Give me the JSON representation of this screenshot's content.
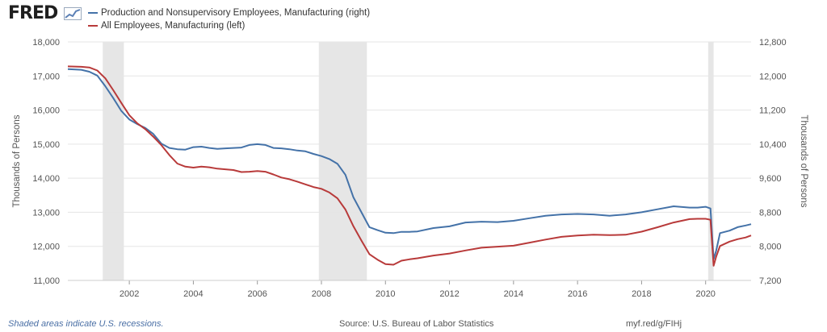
{
  "header": {
    "logo_text": "FRED"
  },
  "footer": {
    "recession_note": "Shaded areas indicate U.S. recessions.",
    "source": "Source: U.S. Bureau of Labor Statistics",
    "short_link": "myf.red/g/FIHj"
  },
  "colors": {
    "production_series": "#4472a8",
    "all_employees_series": "#b83a3a",
    "recession_shading": "#e6e6e6",
    "gridline": "#e5e5e5"
  },
  "chart_data": {
    "type": "line",
    "title": "",
    "xlabel": "",
    "ylabel_left": "Thousands of Persons",
    "ylabel_right": "Thousands of Persons",
    "xlim": [
      2000.08,
      2021.42
    ],
    "ylim_left": [
      11000,
      18000
    ],
    "ylim_right": [
      7200,
      12800
    ],
    "x_ticks": [
      2002,
      2004,
      2006,
      2008,
      2010,
      2012,
      2014,
      2016,
      2018,
      2020
    ],
    "y_ticks_left": [
      11000,
      12000,
      13000,
      14000,
      15000,
      16000,
      17000,
      18000
    ],
    "y_ticks_left_labels": [
      "11,000",
      "12,000",
      "13,000",
      "14,000",
      "15,000",
      "16,000",
      "17,000",
      "18,000"
    ],
    "y_ticks_right": [
      7200,
      8000,
      8800,
      9600,
      10400,
      11200,
      12000,
      12800
    ],
    "y_ticks_right_labels": [
      "7,200",
      "8,000",
      "8,800",
      "9,600",
      "10,400",
      "11,200",
      "12,000",
      "12,800"
    ],
    "grid": true,
    "legend_position": "top-left",
    "recessions": [
      [
        2001.17,
        2001.83
      ],
      [
        2007.92,
        2009.42
      ],
      [
        2020.08,
        2020.25
      ]
    ],
    "series": [
      {
        "name": "Production and Nonsupervisory Employees, Manufacturing (right)",
        "axis": "right",
        "color": "#4472a8",
        "x": [
          2000.08,
          2000.5,
          2000.75,
          2001.0,
          2001.25,
          2001.5,
          2001.75,
          2002.0,
          2002.25,
          2002.5,
          2002.75,
          2003.0,
          2003.25,
          2003.5,
          2003.75,
          2004.0,
          2004.25,
          2004.5,
          2004.75,
          2005.0,
          2005.25,
          2005.5,
          2005.75,
          2006.0,
          2006.25,
          2006.5,
          2006.75,
          2007.0,
          2007.25,
          2007.5,
          2007.75,
          2008.0,
          2008.25,
          2008.5,
          2008.75,
          2009.0,
          2009.25,
          2009.5,
          2009.75,
          2010.0,
          2010.25,
          2010.5,
          2010.75,
          2011.0,
          2011.5,
          2012.0,
          2012.5,
          2013.0,
          2013.5,
          2014.0,
          2014.5,
          2015.0,
          2015.5,
          2016.0,
          2016.5,
          2017.0,
          2017.5,
          2018.0,
          2018.5,
          2019.0,
          2019.5,
          2019.75,
          2020.0,
          2020.15,
          2020.25,
          2020.33,
          2020.45,
          2020.75,
          2021.0,
          2021.25,
          2021.42
        ],
        "y": [
          12160,
          12145,
          12100,
          12010,
          11760,
          11480,
          11180,
          10980,
          10870,
          10780,
          10640,
          10410,
          10310,
          10280,
          10270,
          10330,
          10340,
          10310,
          10290,
          10300,
          10310,
          10320,
          10380,
          10400,
          10380,
          10310,
          10300,
          10280,
          10250,
          10230,
          10170,
          10120,
          10050,
          9940,
          9680,
          9150,
          8800,
          8450,
          8380,
          8320,
          8310,
          8340,
          8340,
          8350,
          8430,
          8470,
          8560,
          8580,
          8570,
          8600,
          8660,
          8720,
          8750,
          8760,
          8750,
          8720,
          8750,
          8800,
          8870,
          8940,
          8910,
          8910,
          8930,
          8890,
          7700,
          7900,
          8310,
          8370,
          8450,
          8490,
          8520
        ]
      },
      {
        "name": "All Employees, Manufacturing (left)",
        "axis": "left",
        "color": "#b83a3a",
        "x": [
          2000.08,
          2000.5,
          2000.75,
          2001.0,
          2001.25,
          2001.5,
          2001.75,
          2002.0,
          2002.25,
          2002.5,
          2002.75,
          2003.0,
          2003.25,
          2003.5,
          2003.75,
          2004.0,
          2004.25,
          2004.5,
          2004.75,
          2005.0,
          2005.25,
          2005.5,
          2005.75,
          2006.0,
          2006.25,
          2006.5,
          2006.75,
          2007.0,
          2007.25,
          2007.5,
          2007.75,
          2008.0,
          2008.25,
          2008.5,
          2008.75,
          2009.0,
          2009.25,
          2009.5,
          2009.75,
          2010.0,
          2010.25,
          2010.5,
          2010.75,
          2011.0,
          2011.5,
          2012.0,
          2012.5,
          2013.0,
          2013.5,
          2014.0,
          2014.5,
          2015.0,
          2015.5,
          2016.0,
          2016.5,
          2017.0,
          2017.5,
          2018.0,
          2018.5,
          2019.0,
          2019.5,
          2019.75,
          2020.0,
          2020.15,
          2020.25,
          2020.33,
          2020.45,
          2020.75,
          2021.0,
          2021.25,
          2021.42
        ],
        "y": [
          17280,
          17270,
          17250,
          17160,
          16930,
          16580,
          16210,
          15850,
          15610,
          15440,
          15220,
          14970,
          14680,
          14430,
          14340,
          14310,
          14340,
          14320,
          14280,
          14260,
          14240,
          14180,
          14190,
          14210,
          14190,
          14110,
          14020,
          13970,
          13900,
          13820,
          13740,
          13690,
          13580,
          13410,
          13080,
          12590,
          12170,
          11770,
          11610,
          11480,
          11460,
          11580,
          11620,
          11650,
          11730,
          11790,
          11880,
          11960,
          11990,
          12020,
          12110,
          12200,
          12280,
          12320,
          12340,
          12330,
          12340,
          12430,
          12560,
          12700,
          12800,
          12810,
          12810,
          12780,
          11430,
          11700,
          12010,
          12140,
          12210,
          12260,
          12320
        ]
      }
    ]
  }
}
